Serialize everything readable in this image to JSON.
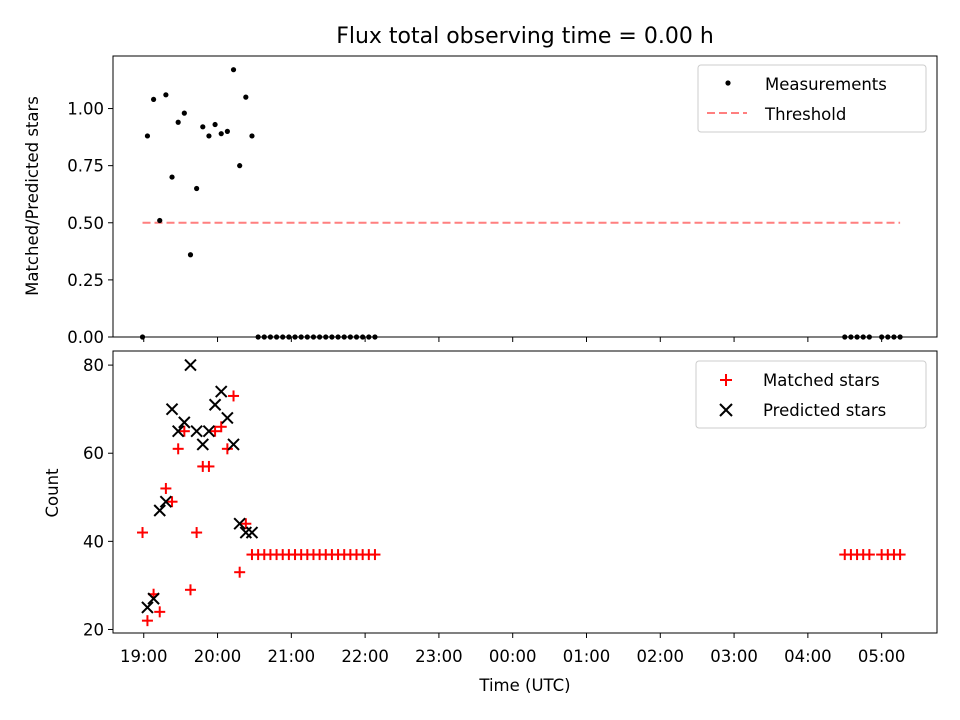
{
  "chart_data": [
    {
      "type": "scatter",
      "title": "Flux total observing time = 0.00 h",
      "ylabel": "Matched/Predicted stars",
      "xlabel": "",
      "xlim": [
        "18:35",
        "05:45"
      ],
      "ylim": [
        0,
        1.23
      ],
      "yticks": [
        "0.00",
        "0.25",
        "0.50",
        "0.75",
        "1.00"
      ],
      "grid": false,
      "legend_position": "top-right",
      "legend": [
        "Measurements",
        "Threshold"
      ],
      "colors": {
        "measurements": "#000000",
        "threshold": "#ff7f7f"
      },
      "series": [
        {
          "name": "Measurements",
          "marker": "dot",
          "points": [
            [
              "18:59",
              0.0
            ],
            [
              "19:03",
              0.88
            ],
            [
              "19:08",
              1.04
            ],
            [
              "19:13",
              0.51
            ],
            [
              "19:18",
              1.06
            ],
            [
              "19:23",
              0.7
            ],
            [
              "19:28",
              0.94
            ],
            [
              "19:33",
              0.98
            ],
            [
              "19:38",
              0.36
            ],
            [
              "19:43",
              0.65
            ],
            [
              "19:48",
              0.92
            ],
            [
              "19:53",
              0.88
            ],
            [
              "19:58",
              0.93
            ],
            [
              "20:03",
              0.89
            ],
            [
              "20:08",
              0.9
            ],
            [
              "20:13",
              1.17
            ],
            [
              "20:18",
              0.75
            ],
            [
              "20:23",
              1.05
            ],
            [
              "20:28",
              0.88
            ],
            [
              "20:33",
              0.0
            ],
            [
              "20:38",
              0.0
            ],
            [
              "20:43",
              0.0
            ],
            [
              "20:48",
              0.0
            ],
            [
              "20:53",
              0.0
            ],
            [
              "20:58",
              0.0
            ],
            [
              "21:03",
              0.0
            ],
            [
              "21:08",
              0.0
            ],
            [
              "21:13",
              0.0
            ],
            [
              "21:18",
              0.0
            ],
            [
              "21:23",
              0.0
            ],
            [
              "21:28",
              0.0
            ],
            [
              "21:33",
              0.0
            ],
            [
              "21:38",
              0.0
            ],
            [
              "21:43",
              0.0
            ],
            [
              "21:48",
              0.0
            ],
            [
              "21:53",
              0.0
            ],
            [
              "21:58",
              0.0
            ],
            [
              "22:03",
              0.0
            ],
            [
              "22:08",
              0.0
            ],
            [
              "04:30",
              0.0
            ],
            [
              "04:35",
              0.0
            ],
            [
              "04:40",
              0.0
            ],
            [
              "04:45",
              0.0
            ],
            [
              "04:50",
              0.0
            ],
            [
              "05:00",
              0.0
            ],
            [
              "05:05",
              0.0
            ],
            [
              "05:10",
              0.0
            ],
            [
              "05:15",
              0.0
            ]
          ]
        },
        {
          "name": "Threshold",
          "style": "dashed-line",
          "points": [
            [
              "18:59",
              0.5
            ],
            [
              "05:15",
              0.5
            ]
          ]
        }
      ]
    },
    {
      "type": "scatter",
      "title": "",
      "ylabel": "Count",
      "xlabel": "Time (UTC)",
      "xlim": [
        "18:35",
        "05:45"
      ],
      "ylim": [
        19.2,
        83.2
      ],
      "yticks": [
        "20",
        "40",
        "60",
        "80"
      ],
      "xticks": [
        "19:00",
        "20:00",
        "21:00",
        "22:00",
        "23:00",
        "00:00",
        "01:00",
        "02:00",
        "03:00",
        "04:00",
        "05:00"
      ],
      "grid": false,
      "legend_position": "top-right",
      "legend": [
        "Matched stars",
        "Predicted stars"
      ],
      "colors": {
        "matched": "#ff0000",
        "predicted": "#000000"
      },
      "series": [
        {
          "name": "Matched stars",
          "marker": "plus",
          "points": [
            [
              "18:59",
              42
            ],
            [
              "19:03",
              22
            ],
            [
              "19:08",
              28
            ],
            [
              "19:13",
              24
            ],
            [
              "19:18",
              52
            ],
            [
              "19:23",
              49
            ],
            [
              "19:28",
              61
            ],
            [
              "19:33",
              65
            ],
            [
              "19:38",
              29
            ],
            [
              "19:43",
              42
            ],
            [
              "19:48",
              57
            ],
            [
              "19:53",
              57
            ],
            [
              "19:58",
              65
            ],
            [
              "20:03",
              66
            ],
            [
              "20:08",
              61
            ],
            [
              "20:13",
              73
            ],
            [
              "20:18",
              33
            ],
            [
              "20:23",
              44
            ],
            [
              "20:28",
              37
            ],
            [
              "20:33",
              37
            ],
            [
              "20:38",
              37
            ],
            [
              "20:43",
              37
            ],
            [
              "20:48",
              37
            ],
            [
              "20:53",
              37
            ],
            [
              "20:58",
              37
            ],
            [
              "21:03",
              37
            ],
            [
              "21:08",
              37
            ],
            [
              "21:13",
              37
            ],
            [
              "21:18",
              37
            ],
            [
              "21:23",
              37
            ],
            [
              "21:28",
              37
            ],
            [
              "21:33",
              37
            ],
            [
              "21:38",
              37
            ],
            [
              "21:43",
              37
            ],
            [
              "21:48",
              37
            ],
            [
              "21:53",
              37
            ],
            [
              "21:58",
              37
            ],
            [
              "22:03",
              37
            ],
            [
              "22:08",
              37
            ],
            [
              "04:30",
              37
            ],
            [
              "04:35",
              37
            ],
            [
              "04:40",
              37
            ],
            [
              "04:45",
              37
            ],
            [
              "04:50",
              37
            ],
            [
              "05:00",
              37
            ],
            [
              "05:05",
              37
            ],
            [
              "05:10",
              37
            ],
            [
              "05:15",
              37
            ]
          ]
        },
        {
          "name": "Predicted stars",
          "marker": "x",
          "points": [
            [
              "19:03",
              25
            ],
            [
              "19:08",
              27
            ],
            [
              "19:13",
              47
            ],
            [
              "19:18",
              49
            ],
            [
              "19:23",
              70
            ],
            [
              "19:28",
              65
            ],
            [
              "19:33",
              67
            ],
            [
              "19:38",
              80
            ],
            [
              "19:43",
              65
            ],
            [
              "19:48",
              62
            ],
            [
              "19:53",
              65
            ],
            [
              "19:58",
              71
            ],
            [
              "20:03",
              74
            ],
            [
              "20:08",
              68
            ],
            [
              "20:13",
              62
            ],
            [
              "20:18",
              44
            ],
            [
              "20:23",
              42
            ],
            [
              "20:28",
              42
            ]
          ]
        }
      ]
    }
  ]
}
